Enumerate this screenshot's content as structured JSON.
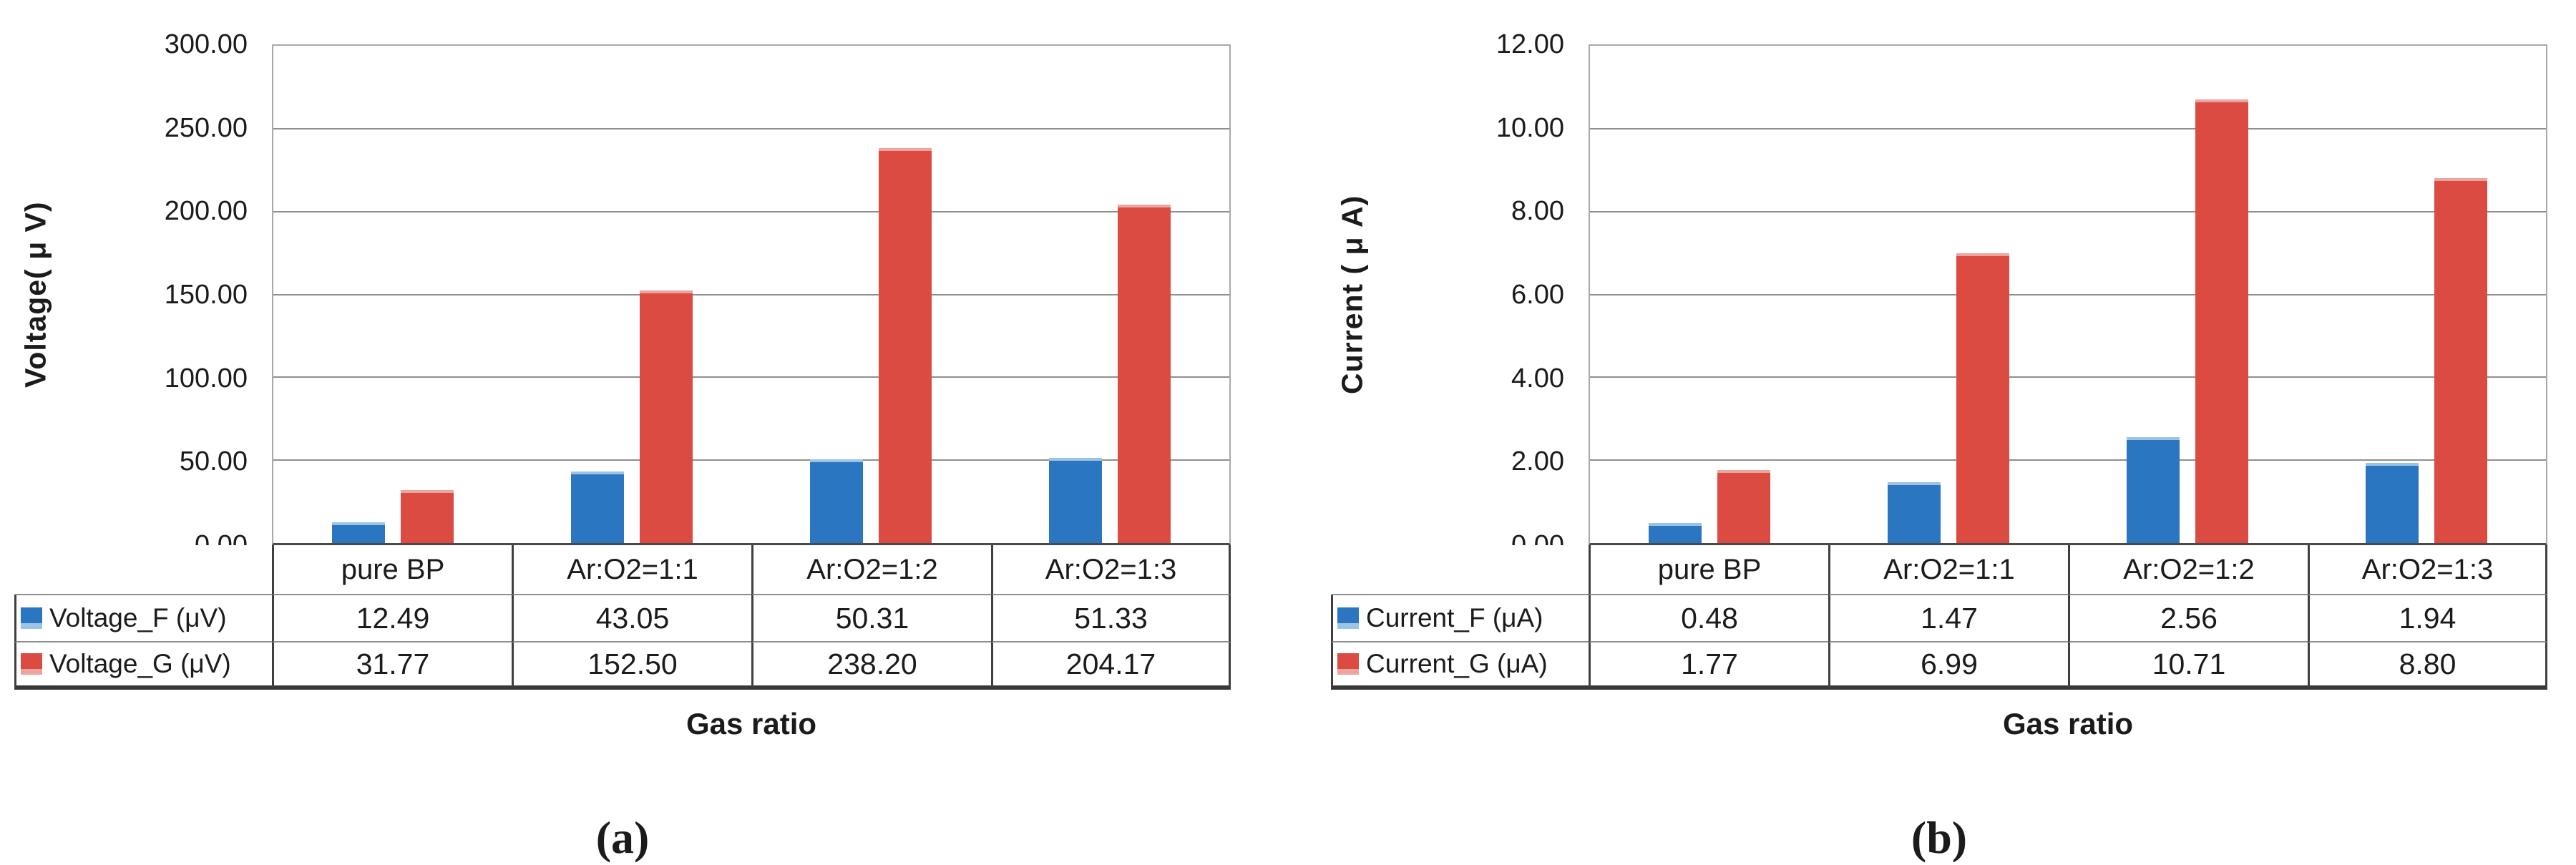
{
  "chart_data": [
    {
      "type": "bar",
      "panel_label": "(a)",
      "xlabel": "Gas ratio",
      "ylabel": "Voltage( μ V)",
      "categories": [
        "pure BP",
        "Ar:O2=1:1",
        "Ar:O2=1:2",
        "Ar:O2=1:3"
      ],
      "series": [
        {
          "name": "Voltage_F (μV)",
          "color": "#2b76c0",
          "edge_color": "#9cc2e5",
          "values": [
            12.49,
            43.05,
            50.31,
            51.33
          ],
          "cells": [
            "12.49",
            "43.05",
            "50.31",
            "51.33"
          ]
        },
        {
          "name": "Voltage_G (μV)",
          "color": "#db4b42",
          "edge_color": "#eba49e",
          "values": [
            31.77,
            152.5,
            238.2,
            204.17
          ],
          "cells": [
            "31.77",
            "152.50",
            "238.20",
            "204.17"
          ]
        }
      ],
      "ylim": [
        0,
        300
      ],
      "ytick_step": 50,
      "ytick_labels": [
        "300.00",
        "250.00",
        "200.00",
        "150.00",
        "100.00",
        "50.00",
        "0.00"
      ],
      "grid": true,
      "legend_position": "table-rows-below-chart"
    },
    {
      "type": "bar",
      "panel_label": "(b)",
      "xlabel": "Gas ratio",
      "ylabel": "Current ( μ A)",
      "categories": [
        "pure BP",
        "Ar:O2=1:1",
        "Ar:O2=1:2",
        "Ar:O2=1:3"
      ],
      "series": [
        {
          "name": "Current_F (μA)",
          "color": "#2b76c0",
          "edge_color": "#9cc2e5",
          "values": [
            0.48,
            1.47,
            2.56,
            1.94
          ],
          "cells": [
            "0.48",
            "1.47",
            "2.56",
            "1.94"
          ]
        },
        {
          "name": "Current_G (μA)",
          "color": "#db4b42",
          "edge_color": "#eba49e",
          "values": [
            1.77,
            6.99,
            10.71,
            8.8
          ],
          "cells": [
            "1.77",
            "6.99",
            "10.71",
            "8.80"
          ]
        }
      ],
      "ylim": [
        0,
        12
      ],
      "ytick_step": 2,
      "ytick_labels": [
        "12.00",
        "10.00",
        "8.00",
        "6.00",
        "4.00",
        "2.00",
        "0.00"
      ],
      "grid": true,
      "legend_position": "table-rows-below-chart"
    }
  ]
}
